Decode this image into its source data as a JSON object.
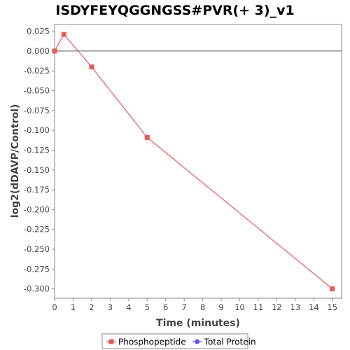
{
  "chart_data": {
    "type": "line",
    "title": "ISDYFEYQGGNGSS#PVR(+ 3)_v1",
    "xlabel": "Time (minutes)",
    "ylabel": "log2(dDAVP/Control)",
    "xlim": [
      0,
      15.5
    ],
    "ylim": [
      -0.3118,
      0.0335
    ],
    "x_ticks": [
      0,
      1,
      2,
      3,
      4,
      5,
      6,
      7,
      8,
      9,
      10,
      11,
      12,
      13,
      14,
      15
    ],
    "y_ticks": [
      0.025,
      0.0,
      -0.025,
      -0.05,
      -0.075,
      -0.1,
      -0.125,
      -0.15,
      -0.175,
      -0.2,
      -0.225,
      -0.25,
      -0.275,
      -0.3
    ],
    "y_tick_labels": [
      "0.025",
      "0.000",
      "-0.025",
      "-0.050",
      "-0.075",
      "-0.100",
      "-0.125",
      "-0.150",
      "-0.175",
      "-0.200",
      "-0.225",
      "-0.250",
      "-0.275",
      "-0.300"
    ],
    "zero_line": 0,
    "grid": false,
    "legend_position": "bottom",
    "series": [
      {
        "name": "Phosphopeptide",
        "color": "#e8595a",
        "marker": "square",
        "x": [
          0,
          0.5,
          2,
          5,
          15
        ],
        "y": [
          0.0,
          0.021,
          -0.02,
          -0.109,
          -0.3
        ]
      },
      {
        "name": "Total Protein",
        "color": "#5b5bea",
        "marker": "circle",
        "x": [],
        "y": []
      }
    ]
  }
}
